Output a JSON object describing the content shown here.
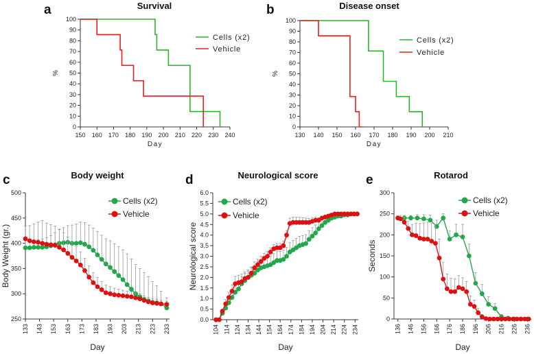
{
  "colors": {
    "cells": "#2db32d",
    "vehicle": "#e61e1e",
    "cells_bottom": "#22a84a",
    "vehicle_bottom": "#dd1111"
  },
  "chart_data": [
    {
      "id": "a",
      "letter": "a",
      "type": "line",
      "step": true,
      "title": "Survival",
      "xlabel": "Day",
      "ylabel": "%",
      "xlim": [
        150,
        240
      ],
      "ylim": [
        0,
        100
      ],
      "xticks": [
        150,
        160,
        170,
        180,
        190,
        200,
        210,
        220,
        230,
        240
      ],
      "yticks": [
        0,
        10,
        20,
        30,
        40,
        50,
        60,
        70,
        80,
        90,
        100
      ],
      "series": [
        {
          "name": "Cells (x2)",
          "color_key": "cells",
          "x": [
            150,
            195,
            196,
            197,
            203,
            216,
            224,
            234
          ],
          "y": [
            100,
            85.7,
            71.4,
            71.4,
            57.1,
            14.3,
            14.3,
            0
          ]
        },
        {
          "name": "Vehicle",
          "color_key": "vehicle",
          "x": [
            150,
            160,
            174,
            175,
            182,
            188,
            224
          ],
          "y": [
            100,
            85.7,
            71.4,
            57.1,
            42.9,
            28.6,
            0
          ]
        }
      ]
    },
    {
      "id": "b",
      "letter": "b",
      "type": "line",
      "step": true,
      "title": "Disease onset",
      "xlabel": "Day",
      "ylabel": "%",
      "xlim": [
        130,
        210
      ],
      "ylim": [
        0,
        100
      ],
      "xticks": [
        130,
        140,
        150,
        160,
        170,
        180,
        190,
        200,
        210
      ],
      "yticks": [
        0,
        10,
        20,
        30,
        40,
        50,
        60,
        70,
        80,
        90,
        100
      ],
      "series": [
        {
          "name": "Cells (x2)",
          "color_key": "cells",
          "x": [
            130,
            167,
            175,
            182,
            189,
            196
          ],
          "y": [
            100,
            71.4,
            42.9,
            28.6,
            14.3,
            0
          ]
        },
        {
          "name": "Vehicle",
          "color_key": "vehicle",
          "x": [
            130,
            140,
            157,
            160,
            162,
            164
          ],
          "y": [
            100,
            85.7,
            28.6,
            14.3,
            0,
            0
          ]
        }
      ]
    },
    {
      "id": "c",
      "letter": "c",
      "type": "line",
      "title": "Body weight",
      "xlabel": "Day",
      "ylabel": "Body Weight (gr.)",
      "xlim": [
        133,
        235
      ],
      "ylim": [
        250,
        500
      ],
      "xticks": [
        133,
        143,
        153,
        163,
        173,
        183,
        193,
        203,
        213,
        223,
        233
      ],
      "yticks": [
        250,
        300,
        350,
        400,
        450,
        500
      ],
      "series": [
        {
          "name": "Cells (x2)",
          "color_key": "cells_bottom",
          "x": [
            133,
            136,
            139,
            142,
            145,
            148,
            151,
            154,
            157,
            160,
            163,
            166,
            169,
            172,
            175,
            178,
            181,
            184,
            187,
            190,
            193,
            196,
            199,
            202,
            205,
            208,
            211,
            214,
            217,
            220,
            223,
            226,
            229,
            233
          ],
          "y": [
            391,
            391,
            392,
            392,
            392,
            393,
            395,
            397,
            400,
            401,
            402,
            400,
            400,
            401,
            398,
            393,
            386,
            377,
            368,
            359,
            352,
            344,
            336,
            328,
            318,
            309,
            300,
            294,
            289,
            286,
            283,
            282,
            280,
            272
          ],
          "err": [
            14,
            15,
            14,
            15,
            16,
            18,
            20,
            24,
            27,
            30,
            33,
            36,
            38,
            41,
            43,
            43,
            44,
            46,
            48,
            50,
            53,
            55,
            57,
            59,
            61,
            60,
            58,
            56,
            53,
            48,
            41,
            34,
            25,
            20
          ]
        },
        {
          "name": "Vehicle",
          "color_key": "vehicle_bottom",
          "x": [
            133,
            136,
            139,
            142,
            145,
            148,
            151,
            154,
            157,
            160,
            163,
            166,
            169,
            172,
            175,
            178,
            181,
            184,
            187,
            190,
            193,
            196,
            199,
            202,
            205,
            208,
            211,
            214,
            217,
            220,
            223,
            226,
            229,
            233
          ],
          "y": [
            409,
            405,
            403,
            402,
            400,
            398,
            397,
            396,
            392,
            387,
            380,
            372,
            365,
            357,
            346,
            333,
            322,
            314,
            308,
            302,
            300,
            298,
            297,
            296,
            295,
            294,
            292,
            290,
            287,
            284,
            282,
            281,
            280,
            279
          ],
          "err": [
            25,
            30,
            35,
            40,
            45,
            42,
            40,
            38,
            36,
            34,
            32,
            30,
            28,
            26,
            24,
            22,
            20,
            18,
            16,
            15,
            14,
            13,
            12,
            11,
            10,
            10,
            10,
            10,
            9,
            9,
            8,
            8,
            7,
            6
          ]
        }
      ]
    },
    {
      "id": "d",
      "letter": "d",
      "type": "line",
      "title": "Neurological score",
      "xlabel": "Day",
      "ylabel": "Neurological score",
      "xlim": [
        101,
        237
      ],
      "ylim": [
        0,
        6
      ],
      "xticks": [
        104,
        114,
        124,
        134,
        144,
        154,
        164,
        174,
        184,
        194,
        204,
        214,
        224,
        234
      ],
      "yticks": [
        "0.0",
        "0.5",
        "1.0",
        "1.5",
        "2.0",
        "2.5",
        "3.0",
        "3.5",
        "4.0",
        "4.5",
        "5.0",
        "5.5",
        "6.0"
      ],
      "series": [
        {
          "name": "Cells (x2)",
          "color_key": "cells_bottom",
          "x": [
            104,
            107,
            110,
            113,
            116,
            119,
            122,
            125,
            128,
            131,
            134,
            137,
            140,
            143,
            146,
            149,
            152,
            155,
            158,
            161,
            164,
            167,
            170,
            173,
            176,
            179,
            182,
            185,
            188,
            191,
            194,
            197,
            200,
            203,
            206,
            209,
            212,
            215,
            218,
            221,
            224,
            227,
            230,
            233,
            236
          ],
          "y": [
            0,
            0,
            0.3,
            0.55,
            0.8,
            1.05,
            1.3,
            1.45,
            1.7,
            1.85,
            2.0,
            2.1,
            2.2,
            2.35,
            2.45,
            2.5,
            2.55,
            2.6,
            2.7,
            2.8,
            2.8,
            2.85,
            3.0,
            3.2,
            3.3,
            3.4,
            3.5,
            3.55,
            3.6,
            3.8,
            3.95,
            4.1,
            4.3,
            4.45,
            4.6,
            4.7,
            4.8,
            4.85,
            4.9,
            4.9,
            4.95,
            4.95,
            5.0,
            5.0,
            5.0
          ],
          "err": [
            0,
            0,
            0.15,
            0.2,
            0.22,
            0.25,
            0.27,
            0.3,
            0.32,
            0.34,
            0.35,
            0.36,
            0.37,
            0.38,
            0.39,
            0.4,
            0.4,
            0.41,
            0.42,
            0.42,
            0.43,
            0.43,
            0.43,
            0.44,
            0.44,
            0.44,
            0.44,
            0.43,
            0.42,
            0.41,
            0.4,
            0.38,
            0.35,
            0.3,
            0.26,
            0.22,
            0.18,
            0.14,
            0.1,
            0.08,
            0.05,
            0.04,
            0,
            0,
            0
          ]
        },
        {
          "name": "Vehicle",
          "color_key": "vehicle_bottom",
          "x": [
            104,
            107,
            110,
            113,
            116,
            119,
            122,
            125,
            128,
            131,
            134,
            137,
            140,
            143,
            146,
            149,
            152,
            155,
            158,
            161,
            164,
            167,
            170,
            173,
            176,
            179,
            182,
            185,
            188,
            191,
            194,
            197,
            200,
            203,
            206,
            209,
            212,
            215,
            218,
            221,
            224,
            227,
            230,
            233,
            236
          ],
          "y": [
            0,
            0,
            0.4,
            0.75,
            1.05,
            1.35,
            1.7,
            1.75,
            1.8,
            1.95,
            2.0,
            2.2,
            2.45,
            2.6,
            2.75,
            2.9,
            3.0,
            3.2,
            3.35,
            3.4,
            3.4,
            3.5,
            4.0,
            4.55,
            4.6,
            4.6,
            4.6,
            4.6,
            4.6,
            4.6,
            4.65,
            4.7,
            4.7,
            4.8,
            4.85,
            4.9,
            4.95,
            5.0,
            5.0,
            5.0,
            5.0,
            5.0,
            5.0,
            5.0,
            5.0
          ],
          "err": [
            0,
            0,
            0.1,
            0.2,
            0.25,
            0.3,
            0.35,
            0.35,
            0.35,
            0.3,
            0.3,
            0.3,
            0.28,
            0.26,
            0.25,
            0.24,
            0.22,
            0.2,
            0.2,
            0.2,
            0.2,
            0.22,
            0.22,
            0.25,
            0.25,
            0.25,
            0.24,
            0.22,
            0.2,
            0.18,
            0.16,
            0.14,
            0.12,
            0.1,
            0.08,
            0.06,
            0.05,
            0.04,
            0.03,
            0,
            0,
            0,
            0,
            0,
            0
          ]
        }
      ]
    },
    {
      "id": "e",
      "letter": "e",
      "type": "line",
      "title": "Rotarod",
      "xlabel": "Day",
      "ylabel": "Seconds",
      "xlim": [
        133,
        239
      ],
      "ylim": [
        0,
        300
      ],
      "xticks": [
        136,
        146,
        156,
        166,
        176,
        186,
        196,
        206,
        216,
        226,
        236
      ],
      "yticks": [
        0,
        50,
        100,
        150,
        200,
        250,
        300
      ],
      "series": [
        {
          "name": "Cells (x2)",
          "color_key": "cells_bottom",
          "x": [
            136,
            141,
            146,
            151,
            156,
            161,
            166,
            171,
            176,
            181,
            186,
            191,
            196,
            201,
            206,
            211,
            216,
            221,
            226,
            231,
            236
          ],
          "y": [
            240,
            240,
            240,
            240,
            238,
            235,
            220,
            240,
            190,
            200,
            195,
            150,
            85,
            60,
            35,
            25,
            5,
            2,
            0,
            0,
            0
          ],
          "err": [
            5,
            6,
            6,
            8,
            10,
            12,
            15,
            10,
            20,
            25,
            30,
            28,
            25,
            22,
            18,
            12,
            6,
            3,
            0,
            0,
            0
          ]
        },
        {
          "name": "Vehicle",
          "color_key": "vehicle_bottom",
          "x": [
            136,
            138,
            141,
            144,
            147,
            150,
            153,
            156,
            159,
            162,
            165,
            168,
            171,
            174,
            177,
            180,
            183,
            186,
            189,
            192,
            195,
            198,
            201,
            204,
            207,
            210,
            213,
            216,
            219,
            222,
            225,
            228,
            231,
            234,
            237
          ],
          "y": [
            240,
            238,
            230,
            215,
            200,
            198,
            192,
            190,
            190,
            185,
            180,
            145,
            95,
            72,
            65,
            65,
            75,
            72,
            65,
            35,
            30,
            15,
            5,
            1,
            0,
            0,
            0,
            0,
            0,
            0,
            0,
            0,
            0,
            0,
            0
          ],
          "err": [
            5,
            8,
            12,
            18,
            25,
            30,
            35,
            38,
            40,
            42,
            45,
            45,
            40,
            35,
            32,
            30,
            28,
            26,
            24,
            20,
            15,
            10,
            6,
            4,
            0,
            0,
            0,
            0,
            0,
            0,
            0,
            0,
            0,
            0,
            0
          ]
        }
      ]
    }
  ]
}
